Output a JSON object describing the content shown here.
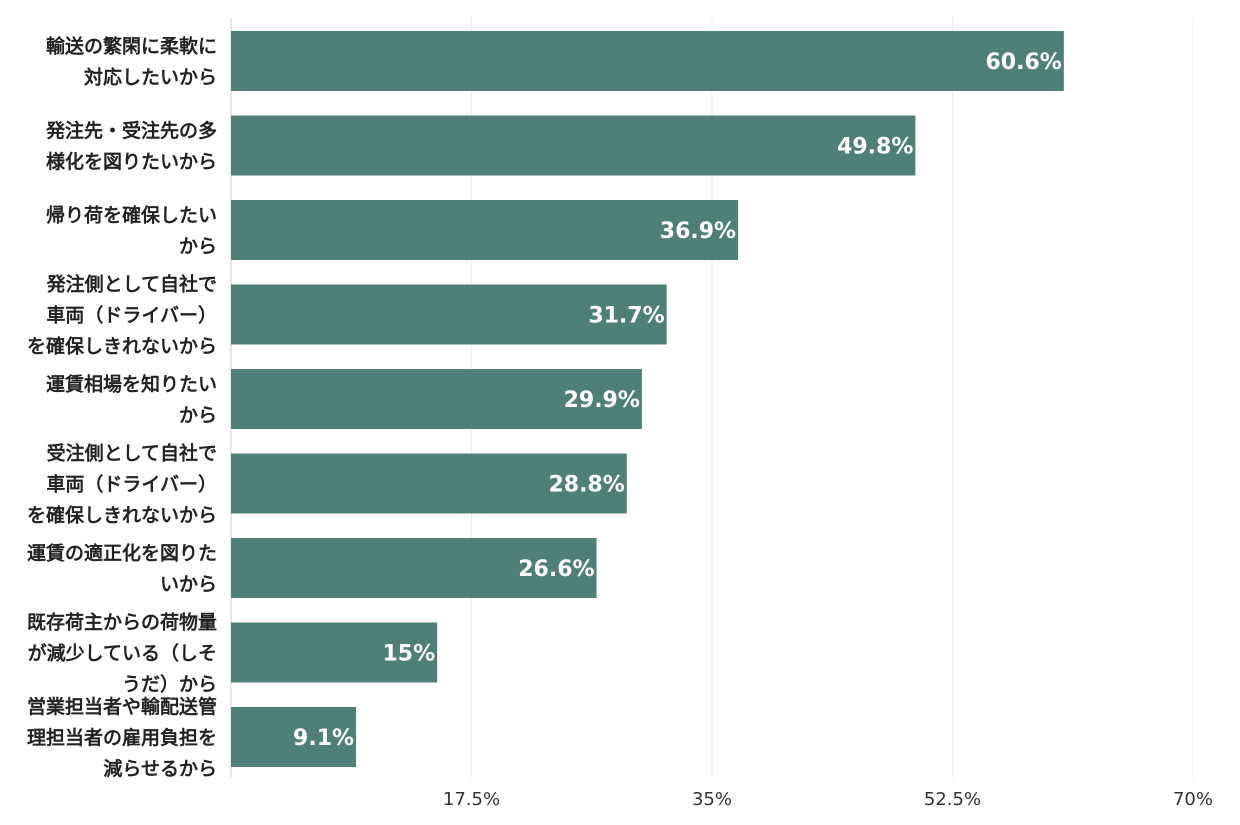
{
  "chart_data": {
    "type": "bar",
    "orientation": "horizontal",
    "title": "",
    "xlabel": "",
    "ylabel": "",
    "xlim": [
      0,
      70
    ],
    "ticks": [
      17.5,
      35,
      52.5,
      70
    ],
    "tick_labels": [
      "17.5%",
      "35%",
      "52.5%",
      "70%"
    ],
    "grid": true,
    "bar_color": "#4f8077",
    "categories": [
      [
        "輸送の繁閑に柔軟に",
        "対応したいから"
      ],
      [
        "発注先・受注先の多",
        "様化を図りたいから"
      ],
      [
        "帰り荷を確保したい",
        "から"
      ],
      [
        "発注側として自社で",
        "車両（ドライバー）",
        "を確保しきれないから"
      ],
      [
        "運賃相場を知りたい",
        "から"
      ],
      [
        "受注側として自社で",
        "車両（ドライバー）",
        "を確保しきれないから"
      ],
      [
        "運賃の適正化を図りた",
        "いから"
      ],
      [
        "既存荷主からの荷物量",
        "が減少している（しそ",
        "うだ）から"
      ],
      [
        "営業担当者や輸配送管",
        "理担当者の雇用負担を",
        "減らせるから"
      ]
    ],
    "values": [
      60.6,
      49.8,
      36.9,
      31.7,
      29.9,
      28.8,
      26.6,
      15,
      9.1
    ],
    "value_labels": [
      "60.6%",
      "49.8%",
      "36.9%",
      "31.7%",
      "29.9%",
      "28.8%",
      "26.6%",
      "15%",
      "9.1%"
    ]
  }
}
